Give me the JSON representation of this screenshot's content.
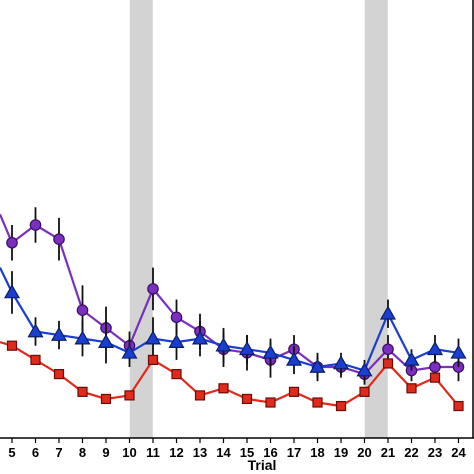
{
  "chart_data": {
    "type": "line",
    "title": "",
    "xlabel": "Trial",
    "ylabel": "",
    "x": [
      5,
      6,
      7,
      8,
      9,
      10,
      11,
      12,
      13,
      14,
      15,
      16,
      17,
      18,
      19,
      20,
      21,
      22,
      23,
      24
    ],
    "xlim": [
      4.5,
      24.5
    ],
    "ylim": [
      0,
      100
    ],
    "shaded_trials": [
      10.5,
      20.5
    ],
    "grid": false,
    "legend": "none",
    "series": [
      {
        "marker": "circle",
        "color": "#7B2FBE",
        "edge_color": "#3a0f66",
        "values": [
          55,
          60,
          56,
          36,
          31,
          26,
          42,
          34,
          30,
          25,
          24,
          22,
          25,
          20,
          20,
          18,
          25,
          19,
          20,
          20
        ],
        "errors": [
          5,
          5,
          6,
          7,
          6,
          4,
          6,
          5,
          5,
          5,
          5,
          5,
          4,
          4,
          3,
          3,
          4,
          3,
          4,
          4
        ],
        "lead_in": 63
      },
      {
        "marker": "triangle",
        "color": "#1A3FD0",
        "edge_color": "#0b1f66",
        "values": [
          41,
          30,
          29,
          28,
          27,
          24,
          28,
          27,
          28,
          26,
          25,
          24,
          22,
          20,
          21,
          19,
          35,
          22,
          25,
          24
        ],
        "errors": [
          6,
          4,
          4,
          5,
          6,
          4,
          6,
          5,
          5,
          5,
          4,
          4,
          4,
          3,
          3,
          3,
          4,
          3,
          4,
          4
        ],
        "lead_in": 48
      },
      {
        "marker": "square",
        "color": "#E02A1B",
        "edge_color": "#6a0d06",
        "values": [
          26,
          22,
          18,
          13,
          11,
          12,
          22,
          18,
          12,
          14,
          11,
          10,
          13,
          10,
          9,
          13,
          21,
          14,
          17,
          9
        ],
        "errors": [
          0,
          0,
          0,
          0,
          0,
          0,
          0,
          0,
          0,
          0,
          0,
          0,
          0,
          0,
          0,
          0,
          0,
          0,
          0,
          0
        ],
        "lead_in": 27
      }
    ]
  }
}
